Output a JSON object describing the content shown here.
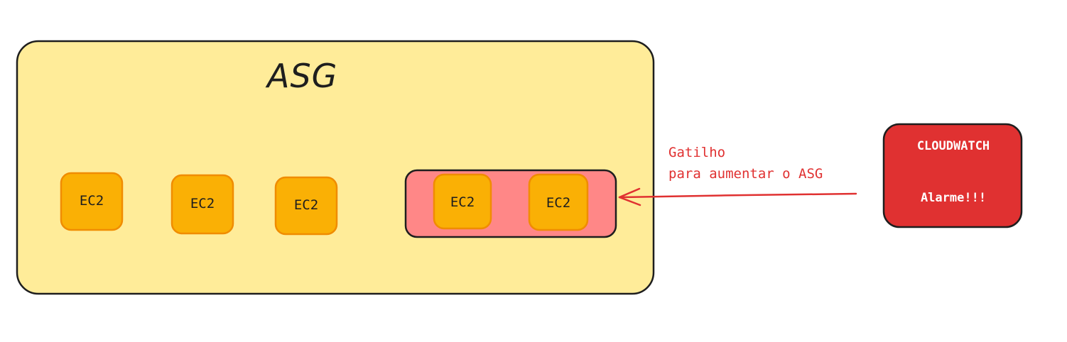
{
  "asg": {
    "title": "ASG"
  },
  "instances": {
    "existing": [
      {
        "label": "EC2"
      },
      {
        "label": "EC2"
      },
      {
        "label": "EC2"
      }
    ],
    "new": [
      {
        "label": "EC2"
      },
      {
        "label": "EC2"
      }
    ]
  },
  "trigger": {
    "line1": "Gatilho",
    "line2": "para aumentar o ASG"
  },
  "cloudwatch": {
    "title": "CLOUDWATCH",
    "alarm": "Alarme!!!"
  },
  "colors": {
    "asg_fill": "#ffec99",
    "ec2_fill": "#fab005",
    "ec2_stroke": "#f08c00",
    "new_group_fill": "#ff8787",
    "cloudwatch_fill": "#e03131",
    "arrow": "#e03131",
    "stroke": "#1e1e1e"
  }
}
